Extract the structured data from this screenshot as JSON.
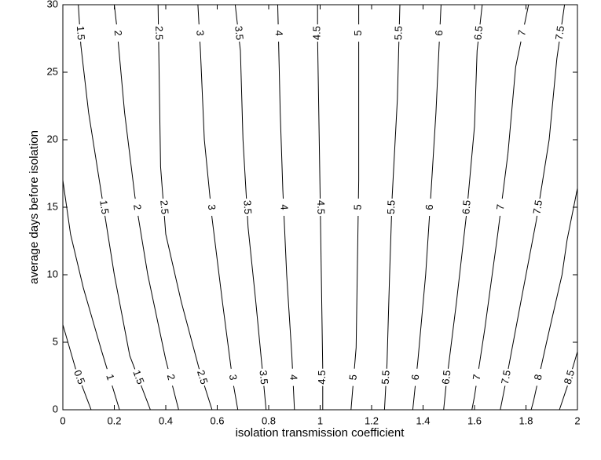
{
  "chart_data": {
    "type": "contour",
    "xlabel": "isolation transmission coefficient",
    "ylabel": "average days before isolation",
    "xlim": [
      0,
      2
    ],
    "ylim": [
      0,
      30
    ],
    "xticks": [
      0,
      0.2,
      0.4,
      0.6,
      0.8,
      1,
      1.2,
      1.4,
      1.6,
      1.8,
      2
    ],
    "yticks": [
      0,
      5,
      10,
      15,
      20,
      25,
      30
    ],
    "color": "#000000",
    "contours": [
      {
        "level": 0.5,
        "x": [
          0.11,
          0.05,
          0
        ],
        "y": [
          0,
          3,
          6.3
        ]
      },
      {
        "level": 1,
        "x": [
          0.22,
          0.15,
          0.08,
          0.03,
          0
        ],
        "y": [
          0,
          4.4,
          9,
          13,
          17
        ]
      },
      {
        "level": 1.5,
        "x": [
          0.34,
          0.26,
          0.2,
          0.15,
          0.1,
          0.07,
          0.06
        ],
        "y": [
          0,
          4,
          10,
          16,
          22,
          27,
          30
        ]
      },
      {
        "level": 2,
        "x": [
          0.45,
          0.4,
          0.33,
          0.28,
          0.24,
          0.21,
          0.2
        ],
        "y": [
          0,
          3.7,
          10,
          15.8,
          22,
          28.3,
          30
        ]
      },
      {
        "level": 2.5,
        "x": [
          0.58,
          0.53,
          0.46,
          0.4,
          0.38,
          0.375,
          0.37
        ],
        "y": [
          0,
          3,
          8,
          13,
          18,
          24,
          30
        ]
      },
      {
        "level": 3,
        "x": [
          0.68,
          0.66,
          0.62,
          0.58,
          0.55,
          0.535,
          0.525
        ],
        "y": [
          0,
          2.2,
          8,
          14.2,
          20,
          26.5,
          30
        ]
      },
      {
        "level": 3.5,
        "x": [
          0.79,
          0.78,
          0.75,
          0.72,
          0.7,
          0.69,
          0.67
        ],
        "y": [
          0,
          2,
          8,
          13.5,
          20,
          26.6,
          30
        ]
      },
      {
        "level": 4,
        "x": [
          0.9,
          0.89,
          0.87,
          0.855,
          0.845,
          0.835
        ],
        "y": [
          0,
          4,
          10,
          16.3,
          22,
          30
        ]
      },
      {
        "level": 4.5,
        "x": [
          1.01,
          1.01,
          1.0,
          0.99,
          0.99
        ],
        "y": [
          0,
          3,
          15.8,
          27.7,
          30
        ]
      },
      {
        "level": 5,
        "x": [
          1.12,
          1.14,
          1.15,
          1.15
        ],
        "y": [
          0,
          4.6,
          17,
          30
        ]
      },
      {
        "level": 5.5,
        "x": [
          1.25,
          1.26,
          1.27,
          1.28,
          1.3,
          1.31
        ],
        "y": [
          0,
          3.4,
          10,
          15.8,
          23,
          30
        ]
      },
      {
        "level": 6,
        "x": [
          1.36,
          1.38,
          1.41,
          1.43,
          1.45,
          1.47
        ],
        "y": [
          0,
          3.7,
          10,
          15.8,
          22,
          30
        ]
      },
      {
        "level": 6.5,
        "x": [
          1.48,
          1.49,
          1.53,
          1.57,
          1.6,
          1.61,
          1.63
        ],
        "y": [
          0,
          1.9,
          8,
          14.7,
          21,
          26.6,
          30
        ]
      },
      {
        "level": 7,
        "x": [
          1.59,
          1.6,
          1.64,
          1.69,
          1.73,
          1.76,
          1.81
        ],
        "y": [
          0,
          1,
          6,
          13,
          19,
          25.4,
          30
        ]
      },
      {
        "level": 7.5,
        "x": [
          1.7,
          1.72,
          1.78,
          1.84,
          1.89,
          1.92,
          1.95
        ],
        "y": [
          0,
          1.9,
          8,
          14,
          20,
          26,
          30
        ]
      },
      {
        "level": 8,
        "x": [
          1.82,
          1.83,
          1.88,
          1.94,
          1.96,
          2
        ],
        "y": [
          0,
          0.7,
          5,
          10,
          12.6,
          16.4
        ]
      },
      {
        "level": 8.5,
        "x": [
          1.93,
          1.96,
          2
        ],
        "y": [
          0,
          1.7,
          4.3
        ]
      }
    ]
  }
}
